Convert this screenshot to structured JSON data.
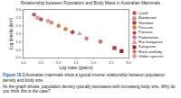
{
  "chart_data": {
    "type": "scatter",
    "title": "Relationship between Population and Body Mass in Australian Mammals",
    "x_label": "Log mass (grams)",
    "y_label": "Log density (km²)",
    "xlim": [
      0,
      3
    ],
    "xticks": [
      {
        "value": 0,
        "label": "0.0"
      },
      0.5,
      {
        "value": 1,
        "label": "1.0"
      },
      1.5,
      {
        "value": 2,
        "label": "2.0"
      },
      2.5,
      {
        "value": 3,
        "label": "3.0"
      }
    ],
    "ylim": [
      0,
      3
    ],
    "yticks": [
      {
        "value": 0,
        "label": "0.0"
      },
      0.5,
      {
        "value": 1,
        "label": "1.0"
      },
      1.5,
      {
        "value": 2,
        "label": "2.0"
      },
      2.5,
      {
        "value": 3,
        "label": "3.0"
      }
    ],
    "grid": false,
    "legend": "right",
    "series": [
      {
        "name": "Quoll",
        "color": "#e8473c",
        "marker": "circle",
        "x": [
          0.3,
          0.5
        ],
        "values": [
          2.7,
          2.4
        ]
      },
      {
        "name": "Bandicoot",
        "color": "#f08a7e",
        "marker": "circle",
        "x": [
          0.8
        ],
        "values": [
          2.2
        ]
      },
      {
        "name": "Wombat",
        "color": "#c0392b",
        "marker": "square",
        "x": [
          2.6
        ],
        "values": [
          0.6
        ]
      },
      {
        "name": "Possum",
        "color": "#ff7f0e",
        "marker": "circle",
        "x": [
          1.0,
          1.2
        ],
        "values": [
          2.0,
          1.8
        ]
      },
      {
        "name": "Potoroo",
        "color": "#d62728",
        "marker": "diamond",
        "x": [
          1.4
        ],
        "values": [
          1.6
        ]
      },
      {
        "name": "Pademelon",
        "color": "#e377c2",
        "marker": "circle",
        "x": [
          1.8
        ],
        "values": [
          1.2
        ]
      },
      {
        "name": "Rat-kangaroo",
        "color": "#f4a582",
        "marker": "triangle-up",
        "x": [
          1.6
        ],
        "values": [
          1.5
        ]
      },
      {
        "name": "Kangaroo",
        "color": "#b2182b",
        "marker": "square",
        "x": [
          2.8
        ],
        "values": [
          0.4
        ]
      },
      {
        "name": "Rock-wallaby",
        "color": "#ef6548",
        "marker": "diamond",
        "x": [
          2.2
        ],
        "values": [
          1.0
        ]
      },
      {
        "name": "Glider species",
        "color": "#fb9a99",
        "marker": "circle",
        "x": [
          0.4,
          0.7
        ],
        "values": [
          2.5,
          2.3
        ]
      }
    ]
  },
  "caption": {
    "label": "Figure 19.3",
    "text": "Australian mammals show a typical inverse relationship between population density and body size."
  },
  "question": "As the graph shows, population density typically decreases with increasing body size. Why do you think this is the case?"
}
